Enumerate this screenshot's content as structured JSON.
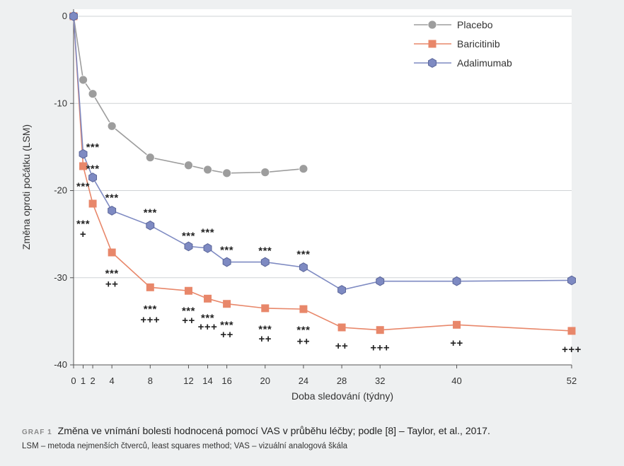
{
  "chart_data": {
    "type": "line",
    "xlabel": "Doba sledování (týdny)",
    "ylabel": "Změna oproti počátku (LSM)",
    "xlim": [
      0,
      52
    ],
    "ylim": [
      -40,
      0
    ],
    "x_ticks": [
      0,
      1,
      2,
      4,
      8,
      12,
      14,
      16,
      20,
      24,
      28,
      32,
      40,
      52
    ],
    "y_ticks": [
      0,
      -10,
      -20,
      -30,
      -40
    ],
    "grid": "horizontal",
    "legend_position": "top-right",
    "series": [
      {
        "name": "Placebo",
        "color": "#9d9d9d",
        "marker": "circle",
        "x": [
          0,
          1,
          2,
          4,
          8,
          12,
          14,
          16,
          20,
          24
        ],
        "y": [
          0,
          -7.3,
          -8.9,
          -12.6,
          -16.2,
          -17.1,
          -17.6,
          -18.0,
          -17.9,
          -17.5
        ]
      },
      {
        "name": "Baricitinib",
        "color": "#e8876a",
        "marker": "square",
        "x": [
          0,
          1,
          2,
          4,
          8,
          12,
          14,
          16,
          20,
          24,
          28,
          32,
          40,
          52
        ],
        "y": [
          0,
          -17.2,
          -21.5,
          -27.1,
          -31.1,
          -31.5,
          -32.4,
          -33.0,
          -33.5,
          -33.6,
          -35.7,
          -36.0,
          -35.4,
          -36.1
        ]
      },
      {
        "name": "Adalimumab",
        "color": "#7e8ac2",
        "marker": "hexagon",
        "x": [
          0,
          1,
          2,
          4,
          8,
          12,
          14,
          16,
          20,
          24,
          28,
          32,
          40,
          52
        ],
        "y": [
          0,
          -15.8,
          -18.5,
          -22.3,
          -24.0,
          -26.4,
          -26.6,
          -28.2,
          -28.2,
          -28.8,
          -31.4,
          -30.4,
          -30.4,
          -30.3
        ]
      }
    ],
    "annotations": [
      {
        "x": 1,
        "y": -19.5,
        "text": "***"
      },
      {
        "x": 1,
        "y": -23.8,
        "text": "***"
      },
      {
        "x": 1,
        "y": -25.0,
        "text": "+"
      },
      {
        "x": 2,
        "y": -15.0,
        "text": "***"
      },
      {
        "x": 2,
        "y": -17.5,
        "text": "***"
      },
      {
        "x": 4,
        "y": -20.8,
        "text": "***"
      },
      {
        "x": 4,
        "y": -29.5,
        "text": "***"
      },
      {
        "x": 4,
        "y": -30.7,
        "text": "++"
      },
      {
        "x": 8,
        "y": -22.5,
        "text": "***"
      },
      {
        "x": 8,
        "y": -33.6,
        "text": "***"
      },
      {
        "x": 8,
        "y": -34.8,
        "text": "+++"
      },
      {
        "x": 12,
        "y": -25.2,
        "text": "***"
      },
      {
        "x": 12,
        "y": -33.8,
        "text": "***"
      },
      {
        "x": 12,
        "y": -34.9,
        "text": "++"
      },
      {
        "x": 14,
        "y": -24.8,
        "text": "***"
      },
      {
        "x": 14,
        "y": -34.6,
        "text": "***"
      },
      {
        "x": 14,
        "y": -35.6,
        "text": "+++"
      },
      {
        "x": 16,
        "y": -26.8,
        "text": "***"
      },
      {
        "x": 16,
        "y": -35.4,
        "text": "***"
      },
      {
        "x": 16,
        "y": -36.5,
        "text": "++"
      },
      {
        "x": 20,
        "y": -26.9,
        "text": "***"
      },
      {
        "x": 20,
        "y": -35.9,
        "text": "***"
      },
      {
        "x": 20,
        "y": -37.0,
        "text": "++"
      },
      {
        "x": 24,
        "y": -27.3,
        "text": "***"
      },
      {
        "x": 24,
        "y": -36.0,
        "text": "***"
      },
      {
        "x": 24,
        "y": -37.3,
        "text": "++"
      },
      {
        "x": 28,
        "y": -37.8,
        "text": "++"
      },
      {
        "x": 32,
        "y": -38.0,
        "text": "+++"
      },
      {
        "x": 40,
        "y": -37.5,
        "text": "++"
      },
      {
        "x": 52,
        "y": -38.2,
        "text": "+++"
      }
    ]
  },
  "caption": {
    "tag": "GRAF 1",
    "text": "Změna ve vnímání bolesti hodnocená pomocí VAS v průběhu léčby; podle [8] – Taylor, et al., 2017."
  },
  "footnote": "LSM – metoda nejmenších čtverců, least squares method; VAS – vizuální analogová škála"
}
